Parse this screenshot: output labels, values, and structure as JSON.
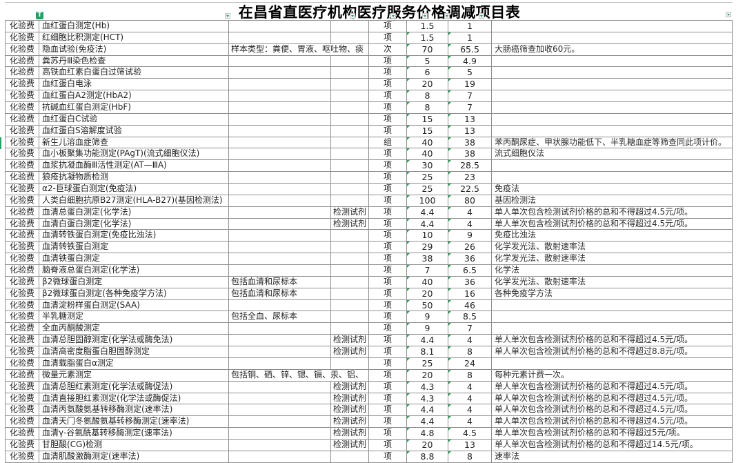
{
  "title": "在昌省直医疗机构医疗服务价格调减项目表",
  "badges": {
    "filter_tag": "T"
  },
  "colors": {
    "accent_green": "#21a366",
    "grid_line": "#8f8f8f"
  },
  "rows": [
    {
      "category": "化验费",
      "name": "血红蛋白测定(Hb)",
      "note": "",
      "reagent": "",
      "unit": "项",
      "old_price": "1.5",
      "new_price": "1",
      "remark": "",
      "err": false,
      "note_spans": false
    },
    {
      "category": "化验费",
      "name": "红细胞比积测定(HCT)",
      "note": "",
      "reagent": "",
      "unit": "项",
      "old_price": "1.5",
      "new_price": "1",
      "remark": "",
      "err": true,
      "note_spans": false
    },
    {
      "category": "化验费",
      "name": "隐血试验(免疫法)",
      "note": "样本类型：粪便、胃液、呕吐物、痰",
      "reagent": "",
      "unit": "次",
      "old_price": "70",
      "new_price": "65.5",
      "remark": "大肠癌筛查加收60元。",
      "err": true,
      "note_spans": true
    },
    {
      "category": "化验费",
      "name": "粪苏丹Ⅲ染色检查",
      "note": "",
      "reagent": "",
      "unit": "项",
      "old_price": "5",
      "new_price": "4.9",
      "remark": "",
      "err": true,
      "note_spans": false
    },
    {
      "category": "化验费",
      "name": "高铁血红素白蛋白过筛试验",
      "note": "",
      "reagent": "",
      "unit": "项",
      "old_price": "6",
      "new_price": "5",
      "remark": "",
      "err": true,
      "note_spans": false
    },
    {
      "category": "化验费",
      "name": "血红蛋白电泳",
      "note": "",
      "reagent": "",
      "unit": "项",
      "old_price": "20",
      "new_price": "19",
      "remark": "",
      "err": true,
      "note_spans": false
    },
    {
      "category": "化验费",
      "name": "血红蛋白A2测定(HbA2)",
      "note": "",
      "reagent": "",
      "unit": "项",
      "old_price": "8",
      "new_price": "7",
      "remark": "",
      "err": true,
      "note_spans": false
    },
    {
      "category": "化验费",
      "name": "抗碱血红蛋白测定(HbF)",
      "note": "",
      "reagent": "",
      "unit": "项",
      "old_price": "8",
      "new_price": "7",
      "remark": "",
      "err": true,
      "note_spans": false
    },
    {
      "category": "化验费",
      "name": "血红蛋白C试验",
      "note": "",
      "reagent": "",
      "unit": "项",
      "old_price": "15",
      "new_price": "13",
      "remark": "",
      "err": true,
      "note_spans": false
    },
    {
      "category": "化验费",
      "name": "血红蛋白S溶解度试验",
      "note": "",
      "reagent": "",
      "unit": "项",
      "old_price": "15",
      "new_price": "13",
      "remark": "",
      "err": true,
      "note_spans": false
    },
    {
      "category": "化验费",
      "name": "新生儿溶血症筛查",
      "note": "",
      "reagent": "",
      "unit": "组",
      "old_price": "40",
      "new_price": "38",
      "remark": "苯丙酮尿症、甲状腺功能低下、半乳糖血症等筛查同此项计价。",
      "err": true,
      "note_spans": false
    },
    {
      "category": "化验费",
      "name": "血小板聚集功能测定(PAgT)(流式细胞仪法)",
      "note": "",
      "reagent": "",
      "unit": "项",
      "old_price": "40",
      "new_price": "38",
      "remark": "流式细胞仪法",
      "err": true,
      "note_spans": false
    },
    {
      "category": "化验费",
      "name": "血浆抗凝血酶Ⅲ活性测定(AT—ⅢA)",
      "note": "",
      "reagent": "",
      "unit": "项",
      "old_price": "30",
      "new_price": "28.5",
      "remark": "",
      "err": true,
      "note_spans": false
    },
    {
      "category": "化验费",
      "name": "狼疮抗凝物质检测",
      "note": "",
      "reagent": "",
      "unit": "项",
      "old_price": "25",
      "new_price": "23",
      "remark": "",
      "err": true,
      "note_spans": false
    },
    {
      "category": "化验费",
      "name": "α2-巨球蛋白测定(免疫法)",
      "note": "",
      "reagent": "",
      "unit": "项",
      "old_price": "25",
      "new_price": "22.5",
      "remark": "免疫法",
      "err": true,
      "note_spans": false
    },
    {
      "category": "化验费",
      "name": "人类白细胞抗原B27测定(HLA-B27)(基因检测法)",
      "note": "",
      "reagent": "",
      "unit": "项",
      "old_price": "100",
      "new_price": "80",
      "remark": "基因检测法",
      "err": true,
      "note_spans": false
    },
    {
      "category": "化验费",
      "name": "血清总蛋白测定(化学法)",
      "note": "",
      "reagent": "检测试剂",
      "unit": "项",
      "old_price": "4.4",
      "new_price": "4",
      "remark": "单人单次包含检测试剂价格的总和不得超过4.5元/项。",
      "err": true,
      "note_spans": false
    },
    {
      "category": "化验费",
      "name": "血清白蛋白测定(化学法)",
      "note": "",
      "reagent": "检测试剂",
      "unit": "项",
      "old_price": "4.4",
      "new_price": "4",
      "remark": "单人单次包含检测试剂价格的总和不得超过4.5元/项。",
      "err": true,
      "note_spans": false
    },
    {
      "category": "化验费",
      "name": "血清转铁蛋白测定(免疫比浊法)",
      "note": "",
      "reagent": "",
      "unit": "项",
      "old_price": "10",
      "new_price": "9",
      "remark": "免疫比浊法",
      "err": true,
      "note_spans": false
    },
    {
      "category": "化验费",
      "name": "血清转铁蛋白测定",
      "note": "",
      "reagent": "",
      "unit": "项",
      "old_price": "29",
      "new_price": "26",
      "remark": "化学发光法、散射速率法",
      "err": true,
      "note_spans": false
    },
    {
      "category": "化验费",
      "name": "血清铁蛋白测定",
      "note": "",
      "reagent": "",
      "unit": "项",
      "old_price": "38",
      "new_price": "36",
      "remark": "化学发光法、散射速率法",
      "err": true,
      "note_spans": false
    },
    {
      "category": "化验费",
      "name": "脑脊液总蛋白测定(化学法)",
      "note": "",
      "reagent": "",
      "unit": "项",
      "old_price": "7",
      "new_price": "6.5",
      "remark": "化学法",
      "err": true,
      "note_spans": false
    },
    {
      "category": "化验费",
      "name": "β2微球蛋白测定",
      "note": "包括血清和尿标本",
      "reagent": "",
      "unit": "项",
      "old_price": "40",
      "new_price": "36",
      "remark": "化学发光法、散射速率法",
      "err": true,
      "note_spans": false
    },
    {
      "category": "化验费",
      "name": "β2微球蛋白测定(各种免疫学方法)",
      "note": "包括血清和尿标本",
      "reagent": "",
      "unit": "项",
      "old_price": "20",
      "new_price": "16",
      "remark": "各种免疫学方法",
      "err": true,
      "note_spans": false
    },
    {
      "category": "化验费",
      "name": "血清淀粉样蛋白测定(SAA)",
      "note": "",
      "reagent": "",
      "unit": "项",
      "old_price": "50",
      "new_price": "46",
      "remark": "",
      "err": true,
      "note_spans": false
    },
    {
      "category": "化验费",
      "name": "半乳糖测定",
      "note": "包括全血、尿标本",
      "reagent": "",
      "unit": "项",
      "old_price": "9",
      "new_price": "8.5",
      "remark": "",
      "err": true,
      "note_spans": false
    },
    {
      "category": "化验费",
      "name": "全血丙酮酸测定",
      "note": "",
      "reagent": "",
      "unit": "项",
      "old_price": "9",
      "new_price": "7",
      "remark": "",
      "err": true,
      "note_spans": false
    },
    {
      "category": "化验费",
      "name": "血清总胆固醇测定(化学法或酶免法)",
      "note": "",
      "reagent": "检测试剂",
      "unit": "项",
      "old_price": "4.4",
      "new_price": "4",
      "remark": "单人单次包含检测试剂价格的总和不得超过4.5元/项。",
      "err": true,
      "note_spans": false
    },
    {
      "category": "化验费",
      "name": "血清高密度脂蛋白胆固醇测定",
      "note": "",
      "reagent": "检测试剂",
      "unit": "项",
      "old_price": "8.1",
      "new_price": "8",
      "remark": "单人单次包含检测试剂价格的总和不得超过8.8元/项。",
      "err": true,
      "note_spans": false
    },
    {
      "category": "化验费",
      "name": "血清载脂蛋白α测定",
      "note": "",
      "reagent": "",
      "unit": "项",
      "old_price": "25",
      "new_price": "24",
      "remark": "",
      "err": true,
      "note_spans": false
    },
    {
      "category": "化验费",
      "name": "微量元素测定",
      "note": "包括铜、硒、锌、锶、镉、汞、铝、",
      "reagent": "",
      "unit": "项",
      "old_price": "20",
      "new_price": "8",
      "remark": "每种元素计费一次。",
      "err": true,
      "note_spans": true
    },
    {
      "category": "化验费",
      "name": "血清总胆红素测定(化学法或酶促法)",
      "note": "",
      "reagent": "检测试剂",
      "unit": "项",
      "old_price": "4.3",
      "new_price": "4",
      "remark": "单人单次包含检测试剂价格的总和不得超过4.5元/项。",
      "err": true,
      "note_spans": false
    },
    {
      "category": "化验费",
      "name": "血清直接胆红素测定(化学法或酶促法)",
      "note": "",
      "reagent": "检测试剂",
      "unit": "项",
      "old_price": "4.3",
      "new_price": "4",
      "remark": "单人单次包含检测试剂价格的总和不得超过4.5元/项。",
      "err": true,
      "note_spans": false
    },
    {
      "category": "化验费",
      "name": "血清丙氨酸氨基转移酶测定(速率法)",
      "note": "",
      "reagent": "检测试剂",
      "unit": "项",
      "old_price": "4.4",
      "new_price": "4",
      "remark": "单人单次包含检测试剂价格的总和不得超过4.5元/项。",
      "err": true,
      "note_spans": false
    },
    {
      "category": "化验费",
      "name": "血清天门冬氨酸氨基转移酶测定(速率法)",
      "note": "",
      "reagent": "检测试剂",
      "unit": "项",
      "old_price": "4.4",
      "new_price": "4",
      "remark": "单人单次包含检测试剂价格的总和不得超过4.5元/项。",
      "err": true,
      "note_spans": false
    },
    {
      "category": "化验费",
      "name": "血清γ-谷氨酰基转移酶测定(速率法)",
      "note": "",
      "reagent": "检测试剂",
      "unit": "项",
      "old_price": "4.8",
      "new_price": "4.5",
      "remark": "单人单次包含检测试剂价格的总和不得超过5元/项。",
      "err": true,
      "note_spans": false
    },
    {
      "category": "化验费",
      "name": "甘胆酸(CG)检测",
      "note": "",
      "reagent": "检测试剂",
      "unit": "项",
      "old_price": "20",
      "new_price": "13",
      "remark": "单人单次包含检测试剂价格的总和不得超过14.5元/项。",
      "err": true,
      "note_spans": false
    },
    {
      "category": "化验费",
      "name": "血清肌酸激酶测定(速率法)",
      "note": "",
      "reagent": "",
      "unit": "项",
      "old_price": "8.8",
      "new_price": "8",
      "remark": "速率法",
      "err": true,
      "note_spans": false
    }
  ]
}
